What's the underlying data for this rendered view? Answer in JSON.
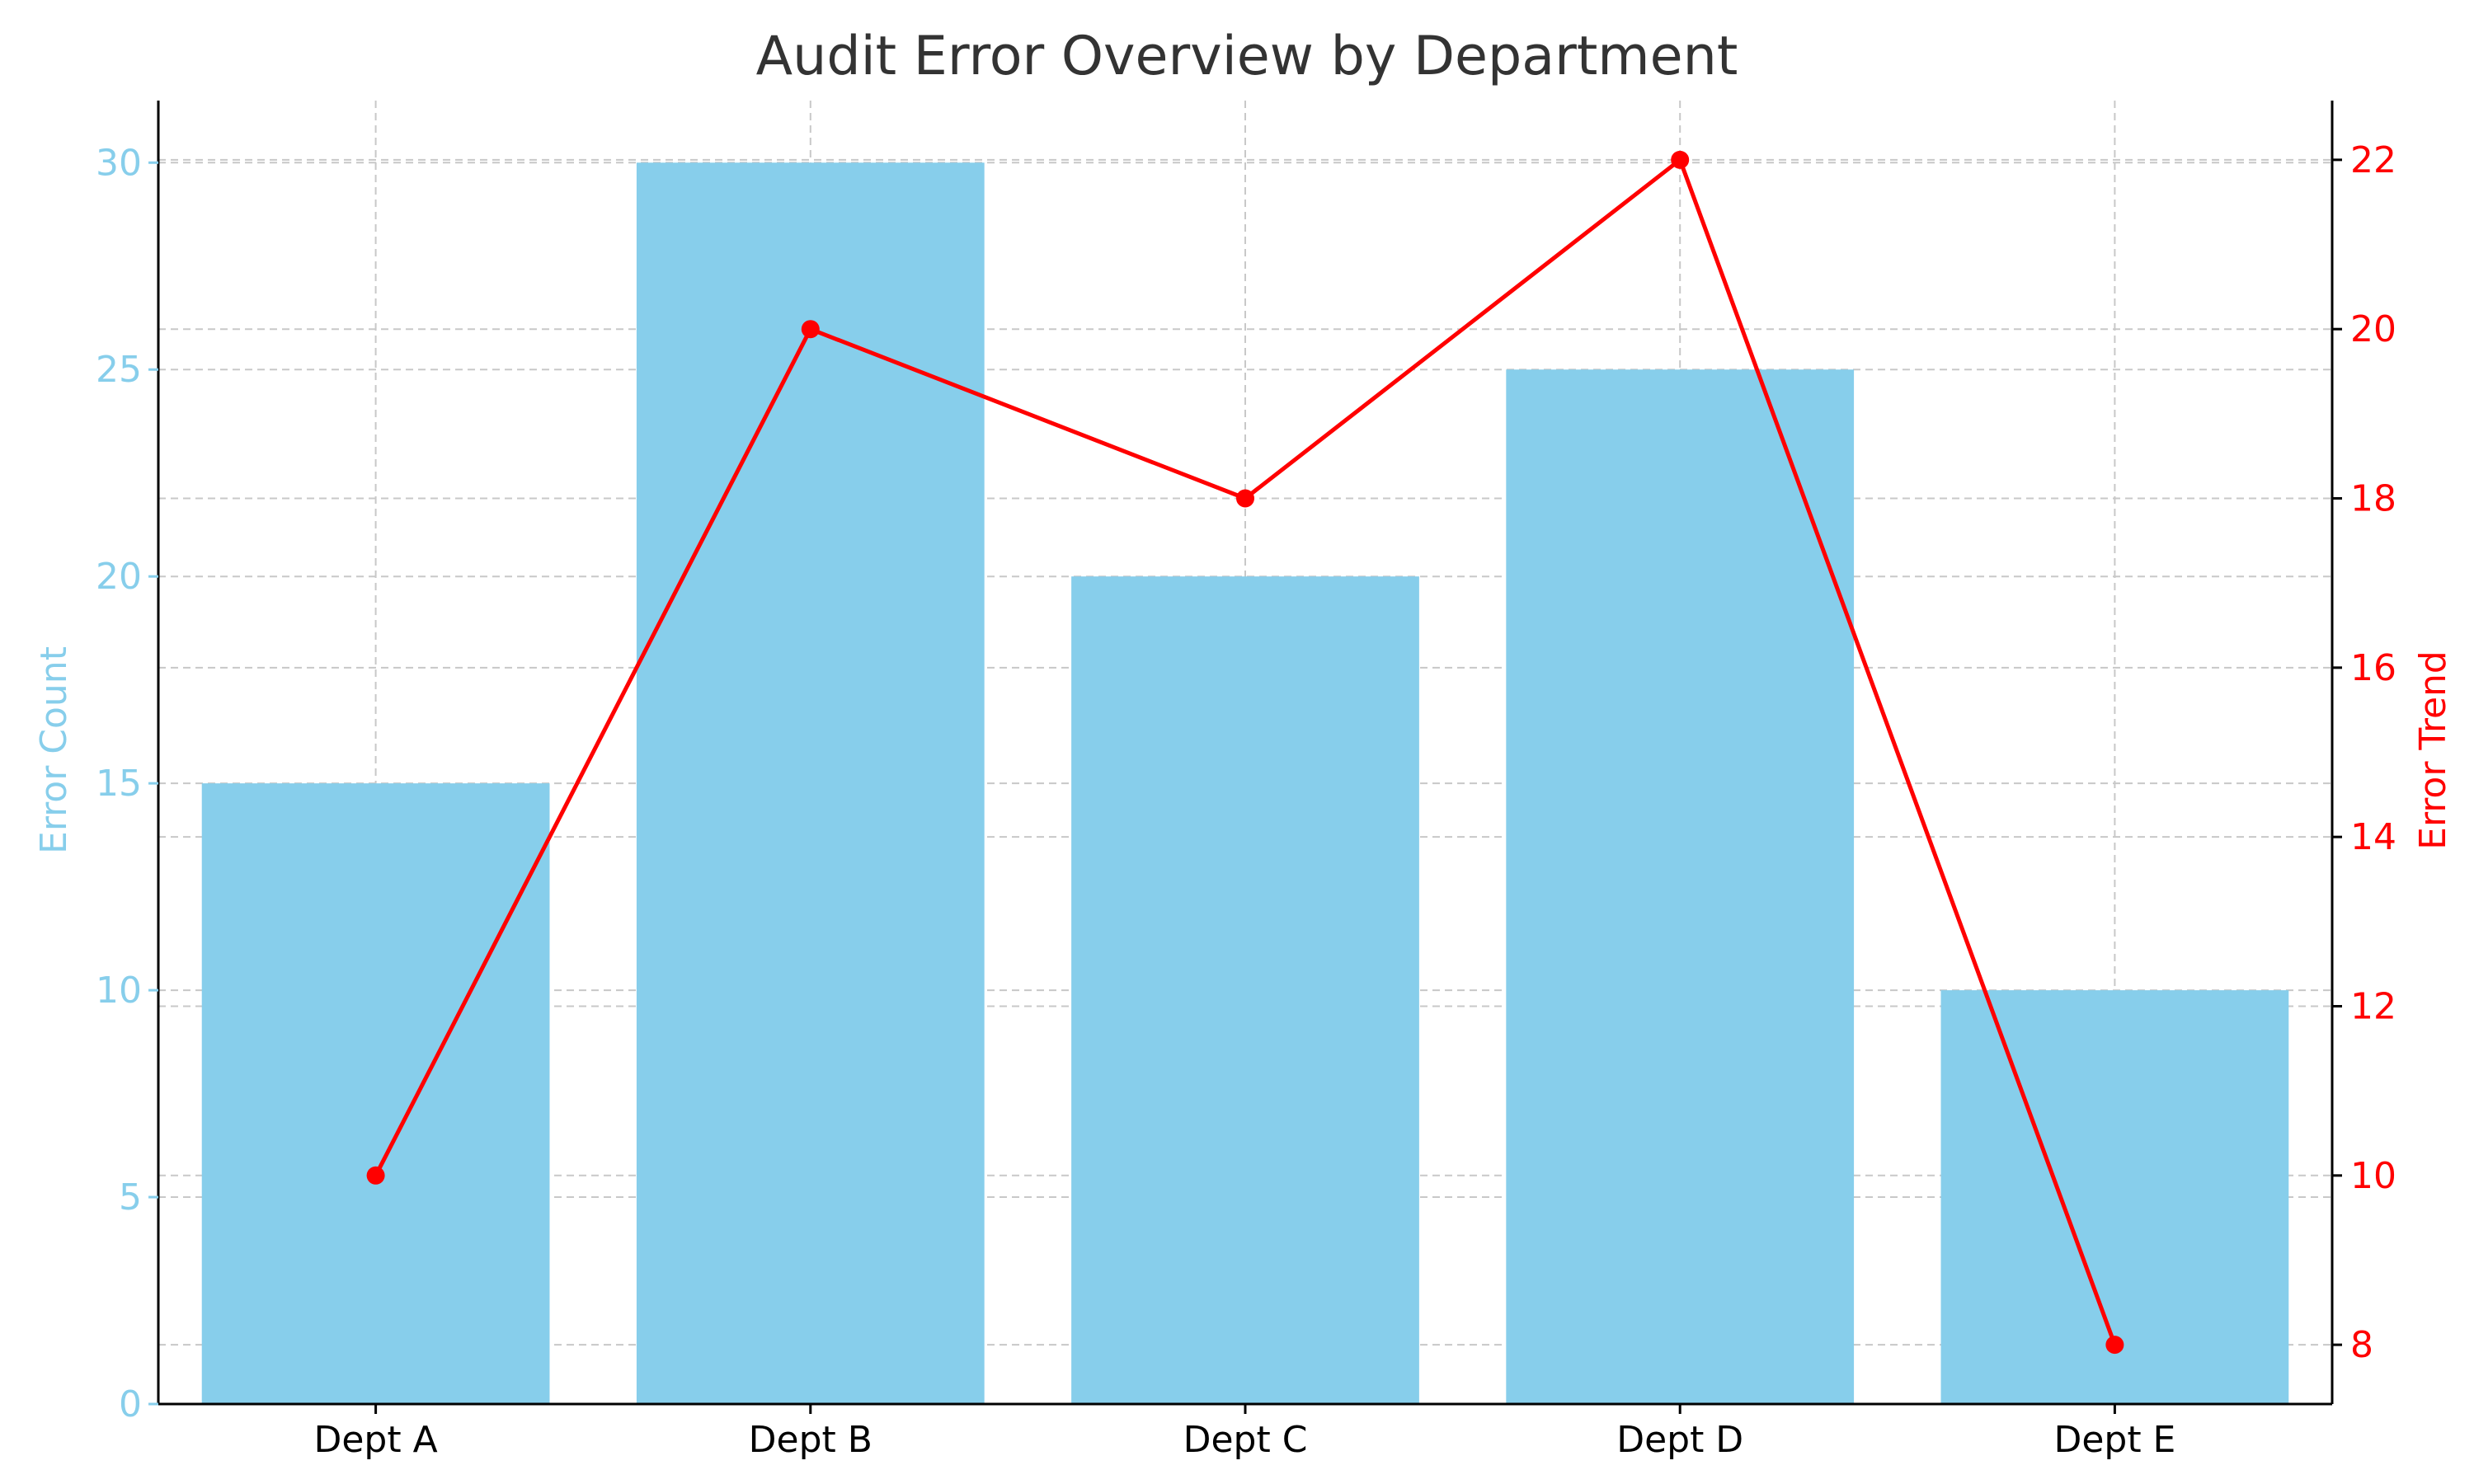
{
  "chart_data": {
    "type": "bar",
    "title": "Audit Error Overview by Department",
    "categories": [
      "Dept A",
      "Dept B",
      "Dept C",
      "Dept D",
      "Dept E"
    ],
    "series": [
      {
        "type": "bar",
        "axis": "left",
        "values": [
          15,
          30,
          20,
          25,
          10
        ],
        "color": "#87CEEB"
      },
      {
        "type": "line",
        "axis": "right",
        "values": [
          10,
          20,
          18,
          22,
          8
        ],
        "color": "#FF0000",
        "marker": "circle"
      }
    ],
    "y_left": {
      "label": "Error Count",
      "ylim": [
        0,
        31.5
      ],
      "ticks": [
        0,
        5,
        10,
        15,
        20,
        25,
        30
      ],
      "color": "#87CEEB"
    },
    "y_right": {
      "label": "Error Trend",
      "ylim": [
        7.3,
        22.7
      ],
      "ticks": [
        8,
        10,
        12,
        14,
        16,
        18,
        20,
        22
      ],
      "color": "#FF0000"
    },
    "xlabel": "",
    "grid": true
  }
}
